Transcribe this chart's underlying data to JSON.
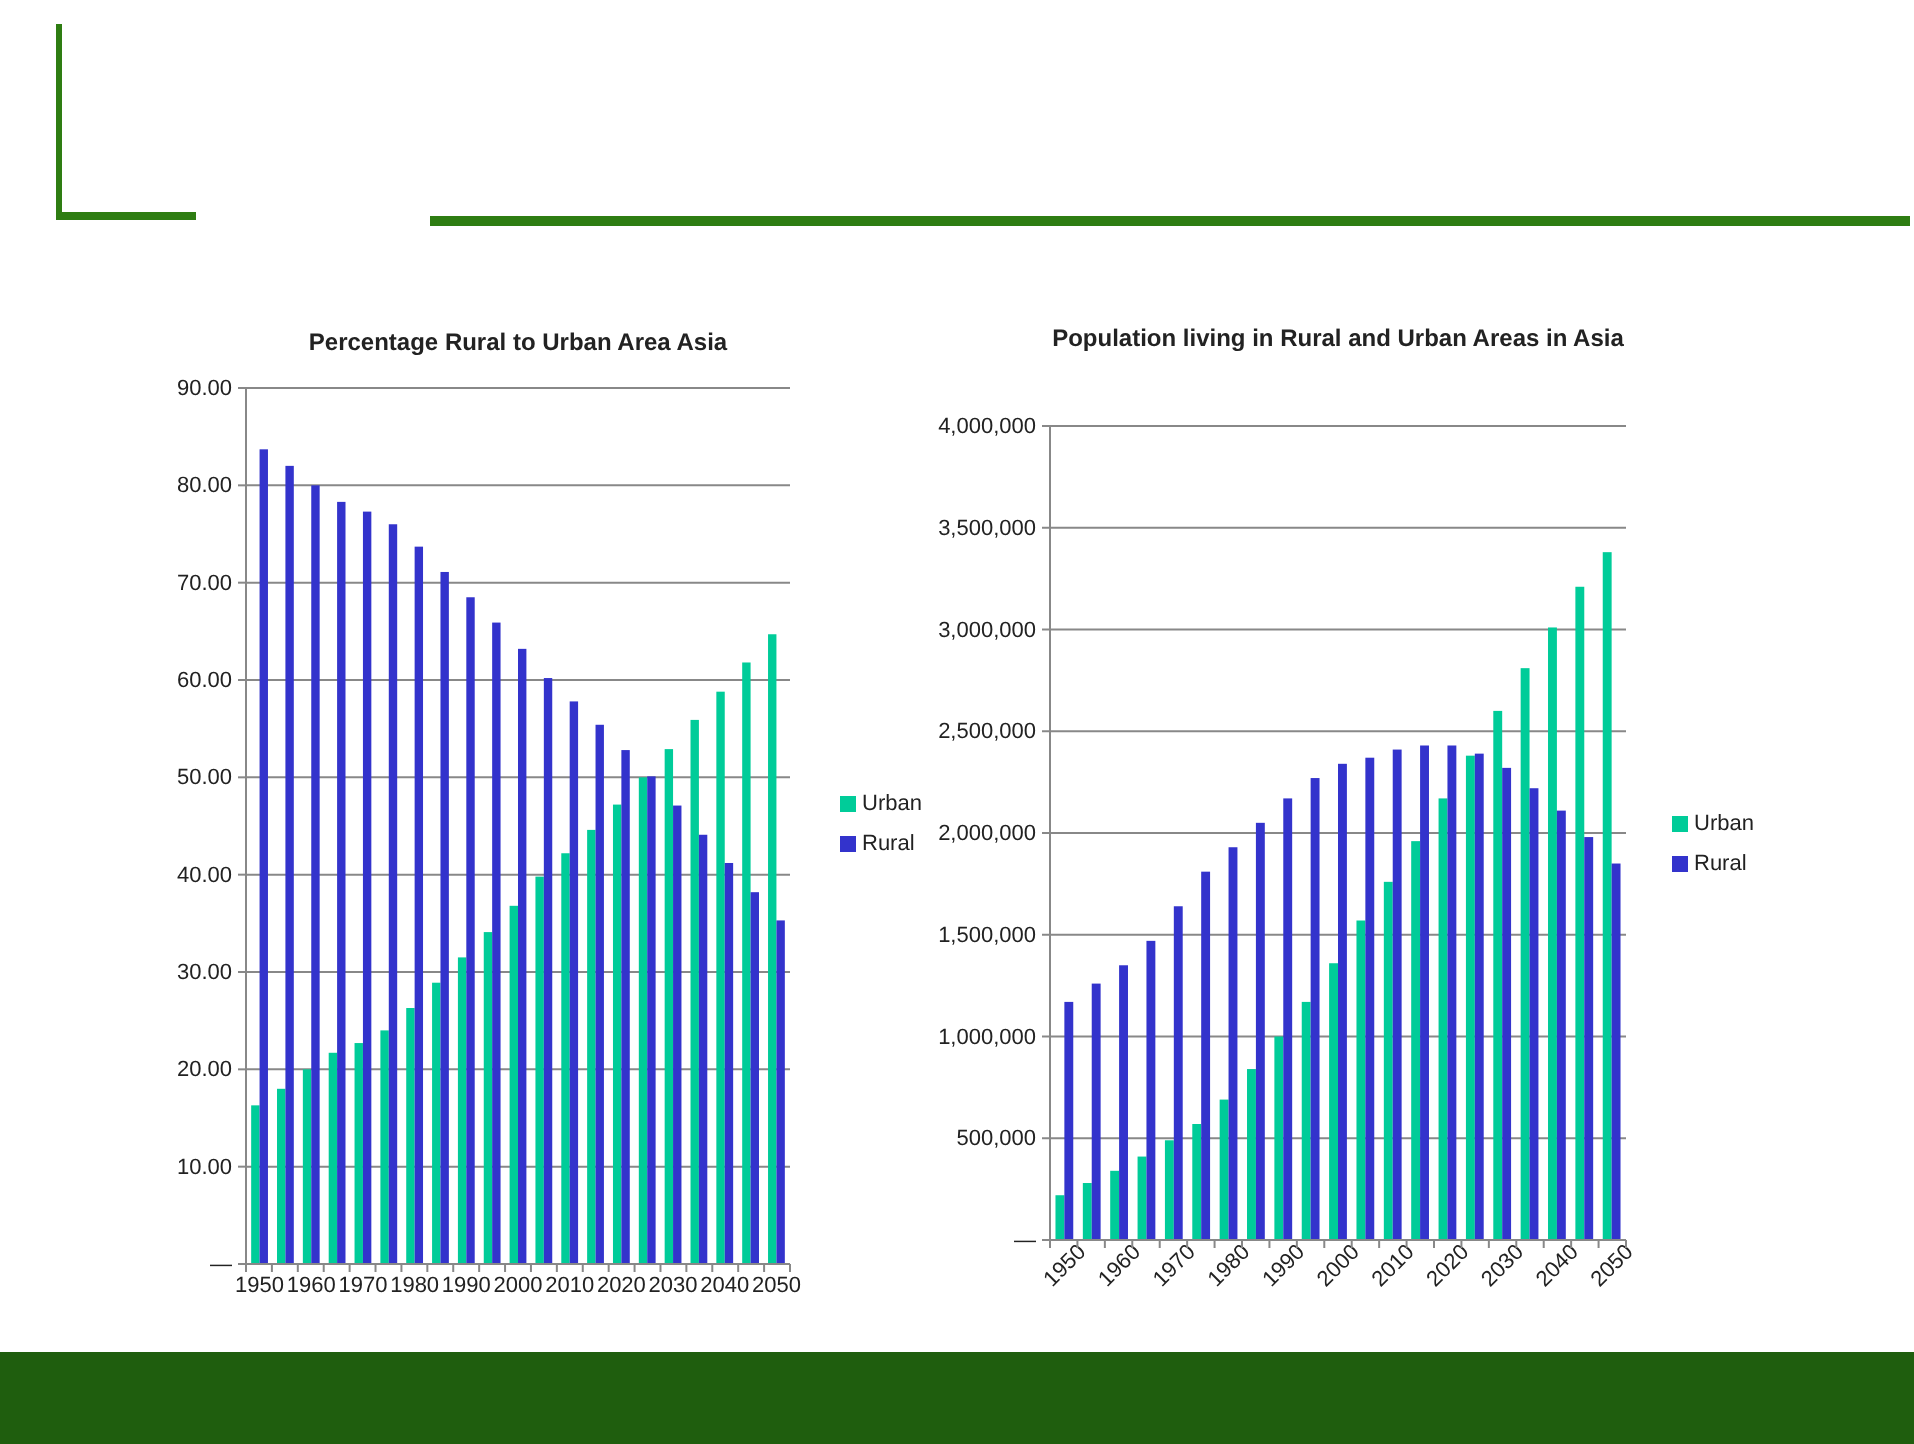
{
  "chart_data": [
    {
      "type": "bar",
      "title": "Percentage Rural to  Urban Area Asia",
      "categories": [
        "1950",
        null,
        "1960",
        null,
        "1970",
        null,
        "1980",
        null,
        "1990",
        null,
        "2000",
        null,
        "2010",
        null,
        "2020",
        null,
        "2030",
        null,
        "2040",
        null,
        "2050"
      ],
      "series": [
        {
          "name": "Urban",
          "color": "#00cc99",
          "values": [
            16.3,
            18.0,
            20.0,
            21.7,
            22.7,
            24.0,
            26.3,
            28.9,
            31.5,
            34.1,
            36.8,
            39.8,
            42.2,
            44.6,
            47.2,
            50.0,
            52.9,
            55.9,
            58.8,
            61.8,
            64.7
          ]
        },
        {
          "name": "Rural",
          "color": "#3333cc",
          "values": [
            83.7,
            82.0,
            80.0,
            78.3,
            77.3,
            76.0,
            73.7,
            71.1,
            68.5,
            65.9,
            63.2,
            60.2,
            57.8,
            55.4,
            52.8,
            50.1,
            47.1,
            44.1,
            41.2,
            38.2,
            35.3
          ]
        }
      ],
      "ylim": [
        0,
        90
      ],
      "yticks": [
        {
          "value": 0,
          "label": "—"
        },
        {
          "value": 10,
          "label": "10.00"
        },
        {
          "value": 20,
          "label": "20.00"
        },
        {
          "value": 30,
          "label": "30.00"
        },
        {
          "value": 40,
          "label": "40.00"
        },
        {
          "value": 50,
          "label": "50.00"
        },
        {
          "value": 60,
          "label": "60.00"
        },
        {
          "value": 70,
          "label": "70.00"
        },
        {
          "value": 80,
          "label": "80.00"
        },
        {
          "value": 90,
          "label": "90.00"
        }
      ],
      "grid": "y",
      "legend": "right"
    },
    {
      "type": "bar",
      "title": "Population living in Rural and Urban Areas in Asia",
      "categories": [
        "1950",
        null,
        "1960",
        null,
        "1970",
        null,
        "1980",
        null,
        "1990",
        null,
        "2000",
        null,
        "2010",
        null,
        "2020",
        null,
        "2030",
        null,
        "2040",
        null,
        "2050"
      ],
      "series": [
        {
          "name": "Urban",
          "color": "#00cc99",
          "values": [
            220000,
            280000,
            340000,
            410000,
            490000,
            570000,
            690000,
            840000,
            1000000,
            1170000,
            1360000,
            1570000,
            1760000,
            1960000,
            2170000,
            2380000,
            2600000,
            2810000,
            3010000,
            3210000,
            3380000
          ]
        },
        {
          "name": "Rural",
          "color": "#3333cc",
          "values": [
            1170000,
            1260000,
            1350000,
            1470000,
            1640000,
            1810000,
            1930000,
            2050000,
            2170000,
            2270000,
            2340000,
            2370000,
            2410000,
            2430000,
            2430000,
            2390000,
            2320000,
            2220000,
            2110000,
            1980000,
            1850000
          ]
        }
      ],
      "ylim": [
        0,
        4000000
      ],
      "yticks": [
        {
          "value": 0,
          "label": "—"
        },
        {
          "value": 500000,
          "label": "500,000"
        },
        {
          "value": 1000000,
          "label": "1,000,000"
        },
        {
          "value": 1500000,
          "label": "1,500,000"
        },
        {
          "value": 2000000,
          "label": "2,000,000"
        },
        {
          "value": 2500000,
          "label": "2,500,000"
        },
        {
          "value": 3000000,
          "label": "3,000,000"
        },
        {
          "value": 3500000,
          "label": "3,500,000"
        },
        {
          "value": 4000000,
          "label": "4,000,000"
        }
      ],
      "grid": "y",
      "legend": "right"
    }
  ]
}
